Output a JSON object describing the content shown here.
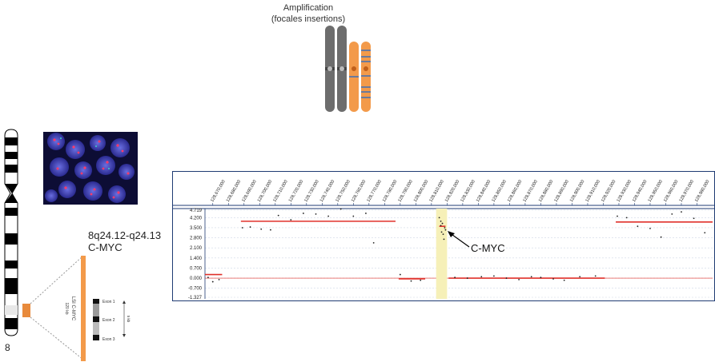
{
  "amplification": {
    "title": "Amplification",
    "subtitle": "(focales insertions)"
  },
  "chromosome": {
    "number": "8"
  },
  "band": {
    "cytoband": "8q24.12-q24.13",
    "gene": "C-MYC"
  },
  "probe": {
    "name": "LSI C-MYC",
    "size": "120 kb",
    "exon_scale": "5 kb",
    "exons": [
      "Exon 1",
      "Exon 2",
      "Exon 3"
    ]
  },
  "annotation": {
    "label": "C-MYC"
  },
  "colors": {
    "chromosome_gray": "#6d6d6d",
    "chromosome_orange": "#f39a4a",
    "segment_red": "#e0302a",
    "highlight": "#f6f0b8",
    "frame_blue": "#1f3b73"
  },
  "chart_data": {
    "type": "scatter",
    "title": "",
    "xlabel": "",
    "ylabel": "",
    "x_ticks": [
      "128,670,000",
      "128,680,000",
      "128,690,000",
      "128,700,000",
      "128,710,000",
      "128,720,000",
      "128,730,000",
      "128,740,000",
      "128,750,000",
      "128,760,000",
      "128,770,000",
      "128,780,000",
      "128,790,000",
      "128,800,000",
      "128,810,000",
      "128,820,000",
      "128,830,000",
      "128,840,000",
      "128,850,000",
      "128,860,000",
      "128,870,000",
      "128,880,000",
      "128,890,000",
      "128,900,000",
      "128,910,000",
      "128,920,000",
      "128,930,000",
      "128,940,000",
      "128,950,000",
      "128,960,000",
      "128,970,000",
      "128,980,000"
    ],
    "y_ticks": [
      "4.719",
      "4.200",
      "3.500",
      "2.800",
      "2.100",
      "1.400",
      "0.700",
      "0.000",
      "-0.700",
      "-1.327"
    ],
    "ylim": [
      -1.327,
      4.719
    ],
    "xlim": [
      128665000,
      128990000
    ],
    "grid": true,
    "highlight_range": [
      128813000,
      128820000
    ],
    "segments": [
      {
        "x0": 128665000,
        "x1": 128676000,
        "y": 0.25
      },
      {
        "x0": 128688000,
        "x1": 128787000,
        "y": 3.95
      },
      {
        "x0": 128789000,
        "x1": 128806000,
        "y": -0.05
      },
      {
        "x0": 128815000,
        "x1": 128819000,
        "y": 3.6
      },
      {
        "x0": 128821000,
        "x1": 128921000,
        "y": 0.0
      },
      {
        "x0": 128928000,
        "x1": 128990000,
        "y": 3.9
      }
    ],
    "points": [
      [
        128667000,
        0.05
      ],
      [
        128670000,
        -0.25
      ],
      [
        128674000,
        -0.1
      ],
      [
        128689000,
        3.5
      ],
      [
        128694000,
        3.55
      ],
      [
        128701000,
        3.4
      ],
      [
        128707000,
        3.35
      ],
      [
        128712000,
        4.35
      ],
      [
        128720000,
        4.05
      ],
      [
        128728000,
        4.5
      ],
      [
        128736000,
        4.45
      ],
      [
        128744000,
        4.3
      ],
      [
        128752000,
        4.8
      ],
      [
        128760000,
        4.3
      ],
      [
        128768000,
        4.5
      ],
      [
        128773000,
        2.45
      ],
      [
        128790000,
        0.25
      ],
      [
        128797000,
        -0.2
      ],
      [
        128803000,
        -0.15
      ],
      [
        128815000,
        4.2
      ],
      [
        128816000,
        3.95
      ],
      [
        128816500,
        3.2
      ],
      [
        128817000,
        3.8
      ],
      [
        128817500,
        3.05
      ],
      [
        128818000,
        2.7
      ],
      [
        128818500,
        3.5
      ],
      [
        128819000,
        3.35
      ],
      [
        128816000,
        3.65
      ],
      [
        128825000,
        0.05
      ],
      [
        128833000,
        0.0
      ],
      [
        128842000,
        0.1
      ],
      [
        128850000,
        0.15
      ],
      [
        128858000,
        0.0
      ],
      [
        128866000,
        -0.1
      ],
      [
        128874000,
        0.1
      ],
      [
        128880000,
        0.05
      ],
      [
        128888000,
        -0.05
      ],
      [
        128895000,
        -0.15
      ],
      [
        128905000,
        0.1
      ],
      [
        128915000,
        0.15
      ],
      [
        128929000,
        4.3
      ],
      [
        128935000,
        4.2
      ],
      [
        128942000,
        3.6
      ],
      [
        128950000,
        3.45
      ],
      [
        128957000,
        2.85
      ],
      [
        128964000,
        4.45
      ],
      [
        128970000,
        4.6
      ],
      [
        128978000,
        4.15
      ],
      [
        128985000,
        3.15
      ]
    ]
  }
}
